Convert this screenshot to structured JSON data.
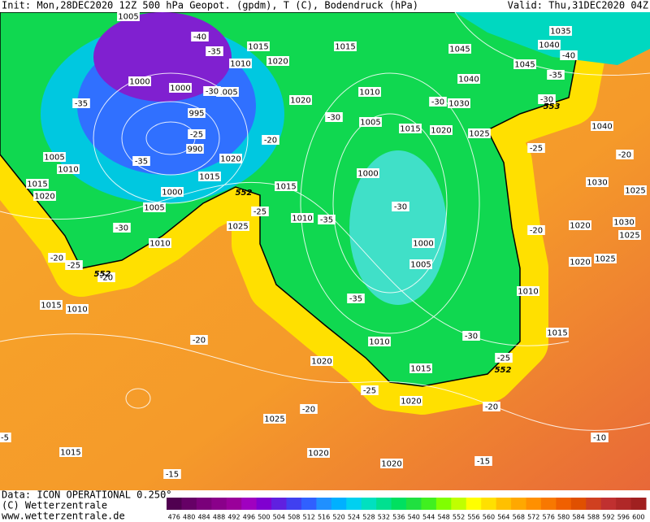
{
  "header": {
    "init": "Init: Mon,28DEC2020 12Z 500 hPa Geopot. (gpdm), T (C), Bodendruck (hPa)",
    "valid": "Valid: Thu,31DEC2020 04Z"
  },
  "footer": {
    "data_source": "Data: ICON OPERATIONAL 0.250°",
    "copyright": "(C) Wetterzentrale",
    "url": "www.wetterzentrale.de"
  },
  "colorbar": {
    "ticks": [
      476,
      480,
      484,
      488,
      492,
      496,
      500,
      504,
      508,
      512,
      516,
      520,
      524,
      528,
      532,
      536,
      540,
      544,
      548,
      552,
      556,
      560,
      564,
      568,
      572,
      576,
      580,
      584,
      588,
      592,
      596,
      600
    ],
    "colors": [
      "#500050",
      "#660066",
      "#7a007a",
      "#8a008a",
      "#9a009a",
      "#a000c0",
      "#8000d0",
      "#6020e0",
      "#4040f0",
      "#3060ff",
      "#2090ff",
      "#00b0ff",
      "#00d0f0",
      "#00e0c0",
      "#00e090",
      "#00e060",
      "#20e040",
      "#40f020",
      "#80ff00",
      "#c0ff00",
      "#ffff00",
      "#ffe000",
      "#ffc000",
      "#ffa800",
      "#ff9000",
      "#f87800",
      "#f06000",
      "#e05000",
      "#d04020",
      "#c03030",
      "#b02828",
      "#a02020"
    ]
  },
  "pressure_labels": [
    "1005",
    "1015",
    "1020",
    "1010",
    "1000",
    "1000",
    "1005",
    "995",
    "990",
    "1020",
    "1010",
    "1015",
    "1045",
    "1035",
    "1040",
    "1045",
    "1040",
    "1030",
    "1005",
    "1015",
    "1020",
    "1025",
    "1040",
    "1005",
    "1010",
    "1015",
    "1020",
    "1020",
    "1015",
    "1000",
    "1005",
    "1015",
    "1000",
    "1010",
    "1030",
    "1025",
    "1020",
    "1030",
    "1025",
    "1025",
    "1010",
    "1000",
    "1005",
    "1020",
    "1025",
    "1015",
    "1010",
    "1010",
    "1010",
    "1015",
    "1020",
    "1015",
    "1020",
    "1025",
    "1015",
    "1020",
    "1020"
  ],
  "temperature_labels": [
    "-40",
    "-35",
    "-35",
    "-30",
    "-35",
    "-35",
    "-30",
    "-30",
    "-30",
    "-35",
    "-40",
    "-30",
    "-25",
    "-20",
    "-25",
    "-25",
    "-20",
    "-30",
    "-20",
    "-25",
    "-20",
    "-20",
    "-35",
    "-30",
    "-25",
    "-25",
    "-20",
    "-20",
    "-20",
    "-15",
    "-15",
    "-10",
    "-5"
  ],
  "height_labels": [
    "552",
    "552",
    "552",
    "553"
  ]
}
